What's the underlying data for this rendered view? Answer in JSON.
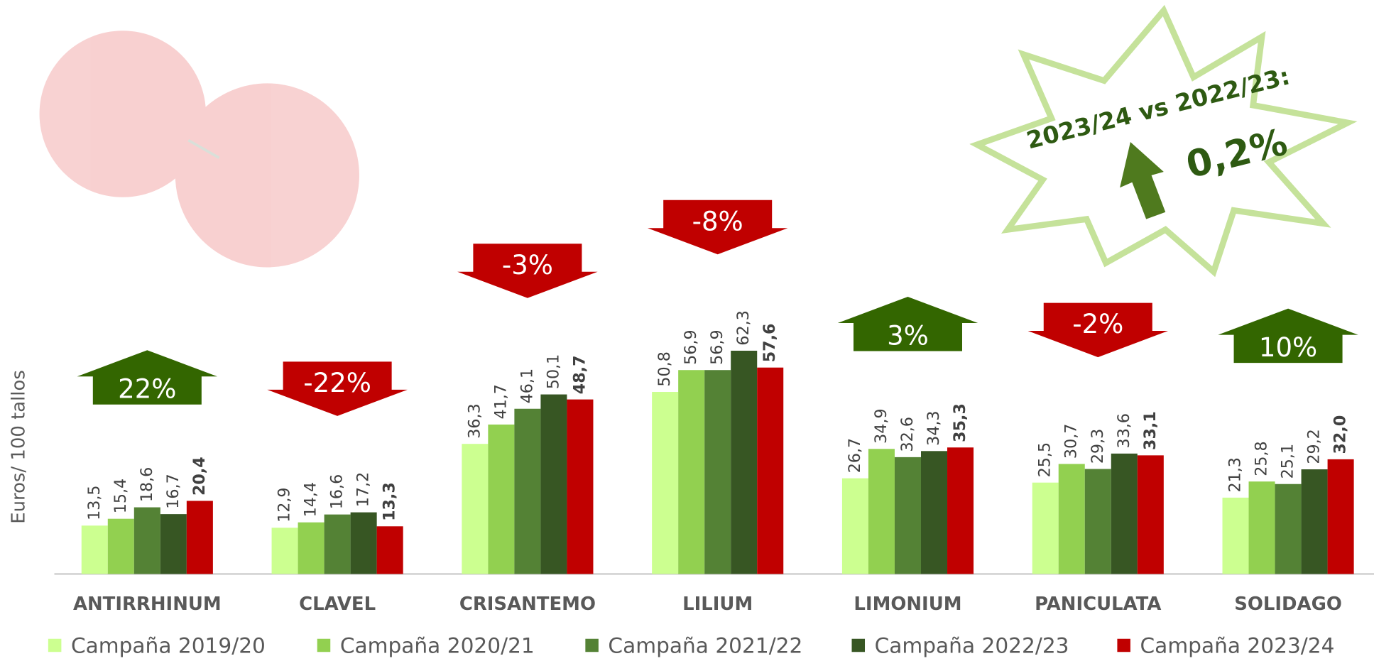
{
  "chart_data": {
    "type": "bar",
    "y_label": "Euros/ 100 tallos",
    "categories": [
      "ANTIRRHINUM",
      "CLAVEL",
      "CRISANTEMO",
      "LILIUM",
      "LIMONIUM",
      "PANICULATA",
      "SOLIDAGO"
    ],
    "series": [
      {
        "name": "Campaña 2019/20",
        "color": "#ccff90",
        "values": [
          13.5,
          12.9,
          36.3,
          50.8,
          26.7,
          25.5,
          21.3
        ],
        "value_labels": [
          "13,5",
          "12,9",
          "36,3",
          "50,8",
          "26,7",
          "25,5",
          "21,3"
        ]
      },
      {
        "name": "Campaña 2020/21",
        "color": "#92d050",
        "values": [
          15.4,
          14.4,
          41.7,
          56.9,
          34.9,
          30.7,
          25.8
        ],
        "value_labels": [
          "15,4",
          "14,4",
          "41,7",
          "56,9",
          "34,9",
          "30,7",
          "25,8"
        ]
      },
      {
        "name": "Campaña 2021/22",
        "color": "#548235",
        "values": [
          18.6,
          16.6,
          46.1,
          56.9,
          32.6,
          29.3,
          25.1
        ],
        "value_labels": [
          "18,6",
          "16,6",
          "46,1",
          "56,9",
          "32,6",
          "29,3",
          "25,1"
        ]
      },
      {
        "name": "Campaña 2022/23",
        "color": "#375623",
        "values": [
          16.7,
          17.2,
          50.1,
          62.3,
          34.3,
          33.6,
          29.2
        ],
        "value_labels": [
          "16,7",
          "17,2",
          "50,1",
          "62,3",
          "34,3",
          "33,6",
          "29,2"
        ]
      },
      {
        "name": "Campaña 2023/24",
        "color": "#c00000",
        "values": [
          20.4,
          13.3,
          48.7,
          57.6,
          35.3,
          33.1,
          32.0
        ],
        "value_labels": [
          "20,4",
          "13,3",
          "48,7",
          "57,6",
          "35,3",
          "33,1",
          "32,0"
        ]
      }
    ],
    "changes": [
      {
        "value": 22,
        "label": "22%"
      },
      {
        "value": -22,
        "label": "-22%"
      },
      {
        "value": -3,
        "label": "-3%"
      },
      {
        "value": -8,
        "label": "-8%"
      },
      {
        "value": 3,
        "label": "3%"
      },
      {
        "value": -2,
        "label": "-2%"
      },
      {
        "value": 10,
        "label": "10%"
      }
    ],
    "up_color": "#336600",
    "down_color": "#c00000",
    "summary": {
      "title": "2023/24 vs 2022/23:",
      "value": 0.2,
      "label": "0,2%"
    },
    "ylim": [
      0,
      100
    ]
  }
}
